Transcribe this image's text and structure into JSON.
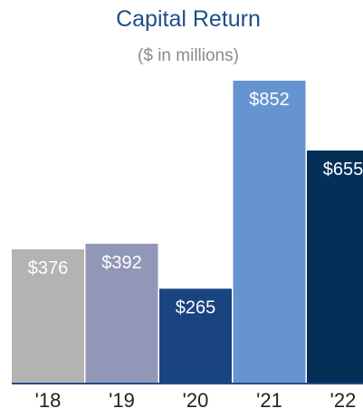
{
  "chart_data": {
    "type": "bar",
    "title": "Capital Return",
    "subtitle": "($ in millions)",
    "categories": [
      "'18",
      "'19",
      "'20",
      "'21",
      "'22"
    ],
    "values": [
      376,
      392,
      265,
      852,
      655
    ],
    "value_labels": [
      "$376",
      "$392",
      "$265",
      "$852",
      "$655"
    ],
    "bar_colors": [
      "#b3b3b3",
      "#9297b8",
      "#1a4480",
      "#6594d1",
      "#052f57"
    ],
    "baseline_color": "#1f4e8c",
    "label_color": "#ffffff",
    "ylim": [
      0,
      852
    ],
    "grid": false,
    "legend": "none"
  }
}
